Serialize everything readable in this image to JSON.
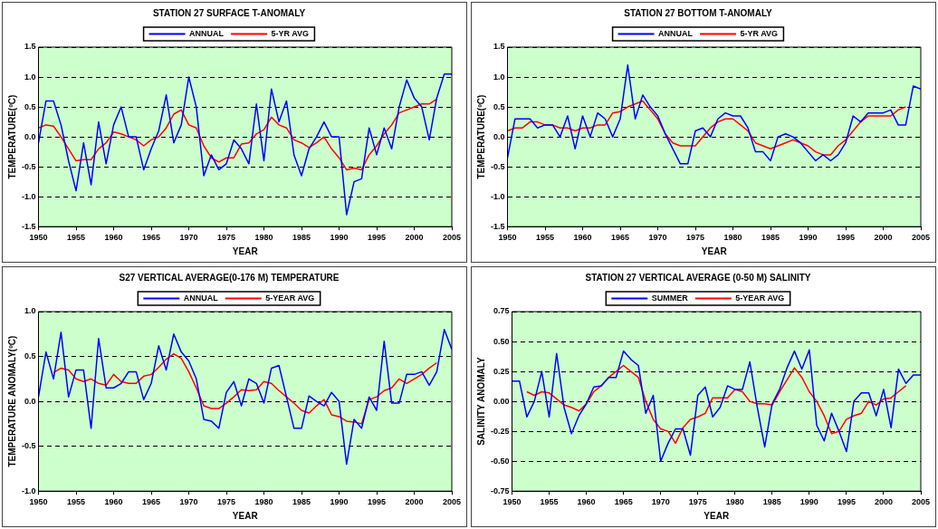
{
  "chart_data": [
    {
      "type": "line",
      "title": "STATION 27 SURFACE T-ANOMALY",
      "xlabel": "YEAR",
      "ylabel": "TEMPERATURE(ºC)",
      "legend": "top",
      "grid": "y",
      "marker": "none",
      "line_style": "solid",
      "xlim": [
        1950,
        2005
      ],
      "xticks": [
        1950,
        1955,
        1960,
        1965,
        1970,
        1975,
        1980,
        1985,
        1990,
        1995,
        2000,
        2005
      ],
      "ylim": [
        -1.5,
        1.5
      ],
      "yticks": [
        -1.5,
        {
          "value": -1,
          "label": "-1.0"
        },
        -0.5,
        {
          "value": 0,
          "label": "0.0"
        },
        0.5,
        {
          "value": 1,
          "label": "1.0"
        },
        1.5
      ],
      "series": [
        {
          "name": "ANNUAL",
          "color": "#0000ff",
          "x": [
            1950,
            1951,
            1952,
            1953,
            1954,
            1955,
            1956,
            1957,
            1958,
            1959,
            1960,
            1961,
            1962,
            1963,
            1964,
            1965,
            1966,
            1967,
            1968,
            1969,
            1970,
            1971,
            1972,
            1973,
            1974,
            1975,
            1976,
            1977,
            1978,
            1979,
            1980,
            1981,
            1982,
            1983,
            1984,
            1985,
            1986,
            1987,
            1988,
            1989,
            1990,
            1991,
            1992,
            1993,
            1994,
            1995,
            1996,
            1997,
            1998,
            1999,
            2000,
            2001,
            2002,
            2003,
            2004,
            2005
          ],
          "values": [
            -0.1,
            0.6,
            0.6,
            0.2,
            -0.4,
            -0.9,
            -0.1,
            -0.8,
            0.25,
            -0.45,
            0.2,
            0.5,
            0.0,
            0.0,
            -0.55,
            -0.2,
            0.1,
            0.7,
            -0.1,
            0.2,
            1.0,
            0.5,
            -0.65,
            -0.3,
            -0.55,
            -0.45,
            -0.05,
            -0.2,
            -0.45,
            0.55,
            -0.4,
            0.8,
            0.25,
            0.6,
            -0.3,
            -0.65,
            -0.2,
            0.0,
            0.25,
            0.0,
            0.0,
            -1.3,
            -0.75,
            -0.7,
            0.15,
            -0.3,
            0.15,
            -0.2,
            0.5,
            0.95,
            0.65,
            0.5,
            -0.05,
            0.65,
            1.05,
            1.05
          ]
        },
        {
          "name": "5-YR AVG",
          "color": "#ff0000",
          "x": [
            1950,
            1951,
            1952,
            1953,
            1954,
            1955,
            1956,
            1957,
            1958,
            1959,
            1960,
            1961,
            1962,
            1963,
            1964,
            1965,
            1966,
            1967,
            1968,
            1969,
            1970,
            1971,
            1972,
            1973,
            1974,
            1975,
            1976,
            1977,
            1978,
            1979,
            1980,
            1981,
            1982,
            1983,
            1984,
            1985,
            1986,
            1987,
            1988,
            1989,
            1990,
            1991,
            1992,
            1993,
            1994,
            1995,
            1996,
            1997,
            1998,
            1999,
            2000,
            2001,
            2002,
            2003
          ],
          "values": [
            0.15,
            0.2,
            0.18,
            0.0,
            -0.2,
            -0.4,
            -0.38,
            -0.38,
            -0.2,
            -0.1,
            0.08,
            0.05,
            0.0,
            -0.05,
            -0.15,
            -0.05,
            0.0,
            0.15,
            0.38,
            0.45,
            0.2,
            0.15,
            -0.15,
            -0.35,
            -0.42,
            -0.35,
            -0.35,
            -0.12,
            -0.1,
            0.05,
            0.12,
            0.33,
            0.2,
            0.15,
            -0.05,
            -0.1,
            -0.18,
            -0.1,
            0.0,
            -0.2,
            -0.35,
            -0.55,
            -0.52,
            -0.55,
            -0.3,
            -0.15,
            0.05,
            0.2,
            0.4,
            0.45,
            0.5,
            0.55,
            0.55,
            0.63
          ]
        }
      ]
    },
    {
      "type": "line",
      "title": "STATION 27 BOTTOM T-ANOMALY",
      "xlabel": "YEAR",
      "ylabel": "TEMPERATURE(ºC)",
      "legend": "top",
      "grid": "y",
      "marker": "none",
      "line_style": "solid",
      "xlim": [
        1950,
        2005
      ],
      "xticks": [
        1950,
        1955,
        1960,
        1965,
        1970,
        1975,
        1980,
        1985,
        1990,
        1995,
        2000,
        2005
      ],
      "ylim": [
        -1.5,
        1.5
      ],
      "yticks": [
        -1.5,
        {
          "value": -1,
          "label": "-1.0"
        },
        -0.5,
        {
          "value": 0,
          "label": "0.0"
        },
        0.5,
        {
          "value": 1,
          "label": "1.0"
        },
        1.5
      ],
      "series": [
        {
          "name": "ANNUAL",
          "color": "#0000ff",
          "x": [
            1950,
            1951,
            1952,
            1953,
            1954,
            1955,
            1956,
            1957,
            1958,
            1959,
            1960,
            1961,
            1962,
            1963,
            1964,
            1965,
            1966,
            1967,
            1968,
            1969,
            1970,
            1971,
            1972,
            1973,
            1974,
            1975,
            1976,
            1977,
            1978,
            1979,
            1980,
            1981,
            1982,
            1983,
            1984,
            1985,
            1986,
            1987,
            1988,
            1989,
            1990,
            1991,
            1992,
            1993,
            1994,
            1995,
            1996,
            1997,
            1998,
            1999,
            2000,
            2001,
            2002,
            2003,
            2004,
            2005
          ],
          "values": [
            -0.35,
            0.3,
            0.3,
            0.3,
            0.15,
            0.2,
            0.2,
            0.0,
            0.35,
            -0.2,
            0.35,
            0.0,
            0.4,
            0.3,
            0.0,
            0.3,
            1.2,
            0.3,
            0.7,
            0.5,
            0.35,
            0.05,
            -0.2,
            -0.45,
            -0.45,
            0.1,
            0.15,
            0.0,
            0.3,
            0.4,
            0.35,
            0.35,
            0.15,
            -0.25,
            -0.25,
            -0.4,
            0.0,
            0.05,
            0.0,
            -0.1,
            -0.25,
            -0.4,
            -0.3,
            -0.4,
            -0.3,
            -0.1,
            0.35,
            0.25,
            0.4,
            0.4,
            0.4,
            0.45,
            0.2,
            0.2,
            0.85,
            0.8
          ]
        },
        {
          "name": "5-YR AVG",
          "color": "#ff0000",
          "x": [
            1950,
            1951,
            1952,
            1953,
            1954,
            1955,
            1956,
            1957,
            1958,
            1959,
            1960,
            1961,
            1962,
            1963,
            1964,
            1965,
            1966,
            1967,
            1968,
            1969,
            1970,
            1971,
            1972,
            1973,
            1974,
            1975,
            1976,
            1977,
            1978,
            1979,
            1980,
            1981,
            1982,
            1983,
            1984,
            1985,
            1986,
            1987,
            1988,
            1989,
            1990,
            1991,
            1992,
            1993,
            1994,
            1995,
            1996,
            1997,
            1998,
            1999,
            2000,
            2001,
            2002,
            2003
          ],
          "values": [
            0.1,
            0.15,
            0.15,
            0.25,
            0.25,
            0.2,
            0.2,
            0.15,
            0.15,
            0.1,
            0.15,
            0.15,
            0.2,
            0.2,
            0.4,
            0.42,
            0.5,
            0.55,
            0.6,
            0.45,
            0.3,
            0.05,
            -0.1,
            -0.15,
            -0.15,
            -0.15,
            0.0,
            0.15,
            0.25,
            0.3,
            0.3,
            0.2,
            0.1,
            -0.1,
            -0.15,
            -0.2,
            -0.15,
            -0.1,
            -0.05,
            -0.1,
            -0.15,
            -0.25,
            -0.3,
            -0.3,
            -0.15,
            -0.05,
            0.1,
            0.25,
            0.35,
            0.35,
            0.35,
            0.35,
            0.45,
            0.5
          ]
        }
      ]
    },
    {
      "type": "line",
      "title": "S27 VERTICAL AVERAGE(0-176 M) TEMPERATURE",
      "xlabel": "YEAR",
      "ylabel": "TEMPERATURE ANOMALY(ºC)",
      "legend": "top",
      "grid": "y",
      "marker": "none",
      "line_style": "solid",
      "xlim": [
        1950,
        2005
      ],
      "xticks": [
        1950,
        1955,
        1960,
        1965,
        1970,
        1975,
        1980,
        1985,
        1990,
        1995,
        2000,
        2005
      ],
      "ylim": [
        -1,
        1
      ],
      "yticks": [
        {
          "value": -1,
          "label": "-1.0"
        },
        -0.5,
        {
          "value": 0,
          "label": "0.0"
        },
        0.5,
        {
          "value": 1,
          "label": "1.0"
        }
      ],
      "series": [
        {
          "name": "ANNUAL",
          "color": "#0000ff",
          "x": [
            1950,
            1951,
            1952,
            1953,
            1954,
            1955,
            1956,
            1957,
            1958,
            1959,
            1960,
            1961,
            1962,
            1963,
            1964,
            1965,
            1966,
            1967,
            1968,
            1969,
            1970,
            1971,
            1972,
            1973,
            1974,
            1975,
            1976,
            1977,
            1978,
            1979,
            1980,
            1981,
            1982,
            1983,
            1984,
            1985,
            1986,
            1987,
            1988,
            1989,
            1990,
            1991,
            1992,
            1993,
            1994,
            1995,
            1996,
            1997,
            1998,
            1999,
            2000,
            2001,
            2002,
            2003,
            2004,
            2005
          ],
          "values": [
            0.05,
            0.55,
            0.25,
            0.77,
            0.05,
            0.35,
            0.35,
            -0.3,
            0.7,
            0.15,
            0.15,
            0.2,
            0.33,
            0.33,
            0.02,
            0.2,
            0.62,
            0.35,
            0.75,
            0.55,
            0.45,
            0.25,
            -0.2,
            -0.22,
            -0.3,
            0.1,
            0.22,
            -0.05,
            0.25,
            0.2,
            -0.02,
            0.37,
            0.4,
            0.05,
            -0.3,
            -0.3,
            0.06,
            0.0,
            -0.05,
            0.1,
            0.0,
            -0.7,
            -0.2,
            -0.3,
            0.05,
            -0.1,
            0.67,
            -0.02,
            -0.02,
            0.3,
            0.3,
            0.33,
            0.18,
            0.33,
            0.8,
            0.58
          ]
        },
        {
          "name": "5-YEAR AVG",
          "color": "#ff0000",
          "x": [
            1952,
            1953,
            1954,
            1955,
            1956,
            1957,
            1958,
            1959,
            1960,
            1961,
            1962,
            1963,
            1964,
            1965,
            1966,
            1967,
            1968,
            1969,
            1970,
            1971,
            1972,
            1973,
            1974,
            1975,
            1976,
            1977,
            1978,
            1979,
            1980,
            1981,
            1982,
            1983,
            1984,
            1985,
            1986,
            1987,
            1988,
            1989,
            1990,
            1991,
            1992,
            1993,
            1994,
            1995,
            1996,
            1997,
            1998,
            1999,
            2000,
            2001,
            2002,
            2003
          ],
          "values": [
            0.32,
            0.37,
            0.35,
            0.25,
            0.22,
            0.25,
            0.2,
            0.18,
            0.3,
            0.22,
            0.2,
            0.2,
            0.28,
            0.3,
            0.38,
            0.47,
            0.53,
            0.48,
            0.33,
            0.15,
            -0.05,
            -0.08,
            -0.08,
            -0.02,
            0.05,
            0.13,
            0.12,
            0.13,
            0.22,
            0.2,
            0.12,
            0.05,
            -0.02,
            -0.1,
            -0.13,
            -0.05,
            0.02,
            -0.15,
            -0.17,
            -0.22,
            -0.23,
            -0.25,
            0.02,
            0.05,
            0.12,
            0.15,
            0.25,
            0.2,
            0.25,
            0.3,
            0.37,
            0.43
          ]
        }
      ]
    },
    {
      "type": "line",
      "title": "STATION 27 VERTICAL AVERAGE (0-50 M) SALINITY",
      "xlabel": "YEAR",
      "ylabel": "SALINITY ANOMALY",
      "legend": "top",
      "grid": "y",
      "marker": "none",
      "line_style": "solid",
      "xlim": [
        1950,
        2005
      ],
      "xticks": [
        1950,
        1955,
        1960,
        1965,
        1970,
        1975,
        1980,
        1985,
        1990,
        1995,
        2000,
        2005
      ],
      "ylim": [
        -0.75,
        0.75
      ],
      "yticks": [
        -0.75,
        {
          "value": -0.5,
          "label": "-0.50"
        },
        -0.25,
        {
          "value": 0,
          "label": "0.00"
        },
        0.25,
        {
          "value": 0.5,
          "label": "0.50"
        },
        0.75
      ],
      "series": [
        {
          "name": "SUMMER",
          "color": "#0000ff",
          "x": [
            1950,
            1951,
            1952,
            1953,
            1954,
            1955,
            1956,
            1957,
            1958,
            1959,
            1960,
            1961,
            1962,
            1963,
            1964,
            1965,
            1966,
            1967,
            1968,
            1969,
            1970,
            1971,
            1972,
            1973,
            1974,
            1975,
            1976,
            1977,
            1978,
            1979,
            1980,
            1981,
            1982,
            1983,
            1984,
            1985,
            1986,
            1987,
            1988,
            1989,
            1990,
            1991,
            1992,
            1993,
            1994,
            1995,
            1996,
            1997,
            1998,
            1999,
            2000,
            2001,
            2002,
            2003,
            2004,
            2005
          ],
          "values": [
            0.17,
            0.17,
            -0.13,
            0.0,
            0.25,
            -0.13,
            0.4,
            -0.05,
            -0.27,
            -0.12,
            -0.02,
            0.12,
            0.13,
            0.2,
            0.2,
            0.42,
            0.35,
            0.3,
            -0.1,
            0.05,
            -0.5,
            -0.35,
            -0.23,
            -0.23,
            -0.45,
            0.05,
            0.12,
            -0.13,
            -0.05,
            0.13,
            0.1,
            0.1,
            0.33,
            -0.05,
            -0.38,
            -0.02,
            0.1,
            0.28,
            0.42,
            0.27,
            0.43,
            -0.2,
            -0.33,
            -0.1,
            -0.25,
            -0.42,
            0.0,
            0.07,
            0.07,
            -0.12,
            0.1,
            -0.22,
            0.27,
            0.15,
            0.22,
            0.22
          ]
        },
        {
          "name": "5-YEAR AVG",
          "color": "#ff0000",
          "x": [
            1952,
            1953,
            1954,
            1955,
            1956,
            1957,
            1958,
            1959,
            1960,
            1961,
            1962,
            1963,
            1964,
            1965,
            1966,
            1967,
            1968,
            1969,
            1970,
            1971,
            1972,
            1973,
            1974,
            1975,
            1976,
            1977,
            1978,
            1979,
            1980,
            1981,
            1982,
            1983,
            1984,
            1985,
            1986,
            1987,
            1988,
            1989,
            1990,
            1991,
            1992,
            1993,
            1994,
            1995,
            1996,
            1997,
            1998,
            1999,
            2000,
            2001,
            2002,
            2003
          ],
          "values": [
            0.08,
            0.05,
            0.08,
            0.07,
            0.02,
            -0.03,
            -0.05,
            -0.08,
            -0.02,
            0.08,
            0.13,
            0.2,
            0.25,
            0.3,
            0.25,
            0.2,
            0.0,
            -0.15,
            -0.23,
            -0.25,
            -0.35,
            -0.22,
            -0.15,
            -0.13,
            -0.1,
            0.03,
            0.03,
            0.03,
            0.1,
            0.08,
            0.0,
            -0.02,
            -0.02,
            -0.03,
            0.08,
            0.18,
            0.28,
            0.2,
            0.08,
            0.0,
            -0.12,
            -0.27,
            -0.25,
            -0.15,
            -0.12,
            -0.1,
            0.0,
            -0.03,
            0.02,
            0.03,
            0.08,
            0.13
          ]
        }
      ]
    }
  ]
}
